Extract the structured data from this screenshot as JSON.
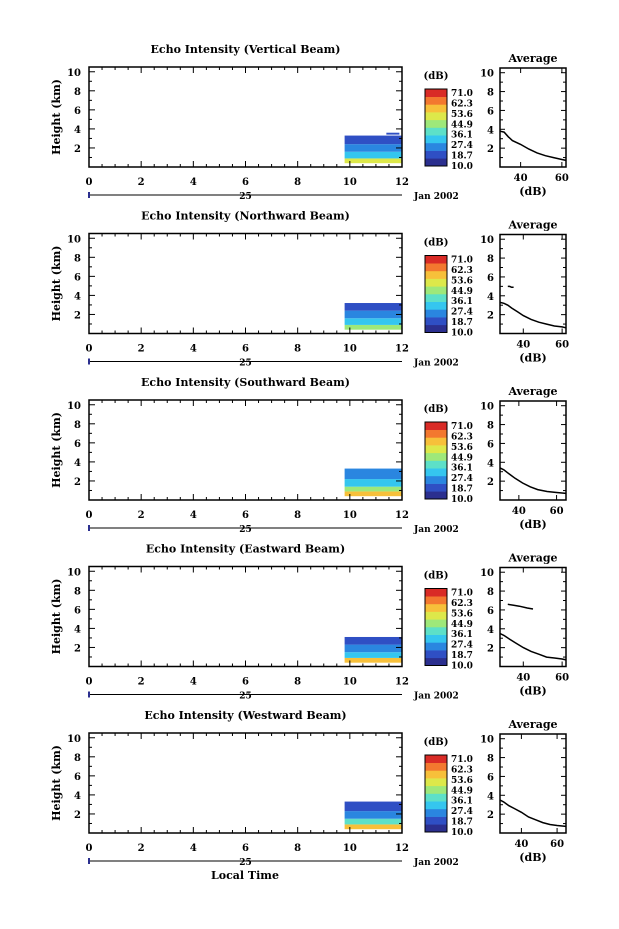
{
  "figure": {
    "xaxis_title": "Local Time",
    "date_label": "Jan 2002",
    "day_label": "25",
    "colorbar_unit": "(dB)",
    "profile_xlabel": "(dB)",
    "profile_title": "Average"
  },
  "colors": {
    "background": "#ffffff",
    "axis": "#000000",
    "colormap": [
      "#2b2f8f",
      "#2f4fc4",
      "#2a86e0",
      "#35c6ef",
      "#5de0c8",
      "#9ee87a",
      "#dde84a",
      "#f7c03a",
      "#f3782f",
      "#d92b26"
    ]
  },
  "chart_data": [
    {
      "type": "heatmap",
      "title": "Echo Intensity (Vertical Beam)",
      "xlabel": "Local Time",
      "ylabel": "Height (km)",
      "xlim": [
        0,
        12
      ],
      "ylim": [
        0,
        10.5
      ],
      "x_ticks": [
        0,
        2,
        4,
        6,
        8,
        10,
        12
      ],
      "y_ticks": [
        2,
        4,
        6,
        8,
        10
      ],
      "colorbar_ticks": [
        71.0,
        62.3,
        53.6,
        44.9,
        36.1,
        27.4,
        18.7,
        10.0
      ],
      "cells": [
        {
          "x0": 9.8,
          "x1": 12.0,
          "y0": 0.4,
          "y1": 0.9,
          "value": 50
        },
        {
          "x0": 9.8,
          "x1": 12.0,
          "y0": 0.9,
          "y1": 1.6,
          "value": 34
        },
        {
          "x0": 9.8,
          "x1": 12.0,
          "y0": 1.6,
          "y1": 2.4,
          "value": 25
        },
        {
          "x0": 9.8,
          "x1": 12.0,
          "y0": 2.4,
          "y1": 3.3,
          "value": 20
        },
        {
          "x0": 11.4,
          "x1": 11.9,
          "y0": 3.4,
          "y1": 3.6,
          "value": 18
        }
      ],
      "profile": {
        "title": "Average",
        "xlabel": "(dB)",
        "xlim": [
          30,
          62
        ],
        "ylim": [
          0,
          10.5
        ],
        "x_ticks": [
          40,
          60
        ],
        "y_ticks": [
          2,
          4,
          6,
          8,
          10
        ],
        "x": [
          30,
          32,
          34,
          36,
          40,
          44,
          48,
          52,
          56,
          60,
          62
        ],
        "y": [
          3.8,
          3.7,
          3.2,
          2.8,
          2.4,
          1.9,
          1.5,
          1.2,
          1.0,
          0.8,
          0.7
        ]
      }
    },
    {
      "type": "heatmap",
      "title": "Echo Intensity (Northward Beam)",
      "xlabel": "Local Time",
      "ylabel": "Height (km)",
      "xlim": [
        0,
        12
      ],
      "ylim": [
        0,
        10.5
      ],
      "x_ticks": [
        0,
        2,
        4,
        6,
        8,
        10,
        12
      ],
      "y_ticks": [
        2,
        4,
        6,
        8,
        10
      ],
      "colorbar_ticks": [
        71.0,
        62.3,
        53.6,
        44.9,
        36.1,
        27.4,
        18.7,
        10.0
      ],
      "cells": [
        {
          "x0": 9.8,
          "x1": 12.0,
          "y0": 0.4,
          "y1": 0.9,
          "value": 42
        },
        {
          "x0": 9.8,
          "x1": 12.0,
          "y0": 0.9,
          "y1": 1.6,
          "value": 30
        },
        {
          "x0": 9.8,
          "x1": 12.0,
          "y0": 1.6,
          "y1": 2.4,
          "value": 24
        },
        {
          "x0": 9.8,
          "x1": 12.0,
          "y0": 2.4,
          "y1": 3.2,
          "value": 20
        }
      ],
      "profile": {
        "title": "Average",
        "xlabel": "(dB)",
        "xlim": [
          28,
          62
        ],
        "ylim": [
          0,
          10.5
        ],
        "x_ticks": [
          40,
          60
        ],
        "y_ticks": [
          2,
          4,
          6,
          8,
          10
        ],
        "x": [
          28,
          30,
          32,
          34,
          37,
          40,
          44,
          48,
          52,
          56,
          60,
          62
        ],
        "y": [
          3.3,
          3.2,
          3.0,
          2.7,
          2.3,
          1.9,
          1.5,
          1.2,
          1.0,
          0.8,
          0.7,
          0.6
        ],
        "upper_segment": {
          "x": [
            32,
            33,
            34,
            35
          ],
          "y": [
            5.0,
            5.0,
            4.9,
            4.9
          ]
        }
      }
    },
    {
      "type": "heatmap",
      "title": "Echo Intensity (Southward Beam)",
      "xlabel": "Local Time",
      "ylabel": "Height (km)",
      "xlim": [
        0,
        12
      ],
      "ylim": [
        0,
        10.5
      ],
      "x_ticks": [
        0,
        2,
        4,
        6,
        8,
        10,
        12
      ],
      "y_ticks": [
        2,
        4,
        6,
        8,
        10
      ],
      "colorbar_ticks": [
        71.0,
        62.3,
        53.6,
        44.9,
        36.1,
        27.4,
        18.7,
        10.0
      ],
      "cells": [
        {
          "x0": 9.8,
          "x1": 12.0,
          "y0": 0.4,
          "y1": 0.9,
          "value": 58
        },
        {
          "x0": 9.8,
          "x1": 12.0,
          "y0": 0.9,
          "y1": 1.4,
          "value": 45
        },
        {
          "x0": 9.8,
          "x1": 12.0,
          "y0": 1.4,
          "y1": 2.2,
          "value": 32
        },
        {
          "x0": 9.8,
          "x1": 12.0,
          "y0": 2.2,
          "y1": 3.3,
          "value": 24
        }
      ],
      "profile": {
        "title": "Average",
        "xlabel": "(dB)",
        "xlim": [
          30,
          65
        ],
        "ylim": [
          0,
          10.5
        ],
        "x_ticks": [
          40,
          60
        ],
        "y_ticks": [
          2,
          4,
          6,
          8,
          10
        ],
        "x": [
          30,
          32,
          34,
          36,
          38,
          42,
          46,
          50,
          55,
          60,
          65
        ],
        "y": [
          3.4,
          3.2,
          2.9,
          2.6,
          2.3,
          1.8,
          1.4,
          1.1,
          0.9,
          0.8,
          0.7
        ]
      }
    },
    {
      "type": "heatmap",
      "title": "Echo Intensity (Eastward Beam)",
      "xlabel": "Local Time",
      "ylabel": "Height (km)",
      "xlim": [
        0,
        12
      ],
      "ylim": [
        0,
        10.5
      ],
      "x_ticks": [
        0,
        2,
        4,
        6,
        8,
        10,
        12
      ],
      "y_ticks": [
        2,
        4,
        6,
        8,
        10
      ],
      "colorbar_ticks": [
        71.0,
        62.3,
        53.6,
        44.9,
        36.1,
        27.4,
        18.7,
        10.0
      ],
      "cells": [
        {
          "x0": 9.8,
          "x1": 12.0,
          "y0": 0.4,
          "y1": 0.9,
          "value": 55
        },
        {
          "x0": 9.8,
          "x1": 12.0,
          "y0": 0.9,
          "y1": 1.5,
          "value": 33
        },
        {
          "x0": 9.8,
          "x1": 12.0,
          "y0": 1.5,
          "y1": 2.3,
          "value": 25
        },
        {
          "x0": 9.8,
          "x1": 12.0,
          "y0": 2.3,
          "y1": 3.1,
          "value": 20
        }
      ],
      "profile": {
        "title": "Average",
        "xlabel": "(dB)",
        "xlim": [
          28,
          62
        ],
        "ylim": [
          0,
          10.5
        ],
        "x_ticks": [
          40,
          60
        ],
        "y_ticks": [
          2,
          4,
          6,
          8,
          10
        ],
        "x": [
          28,
          30,
          33,
          36,
          40,
          44,
          48,
          52,
          56,
          60,
          62
        ],
        "y": [
          3.5,
          3.3,
          2.9,
          2.5,
          2.0,
          1.6,
          1.3,
          1.0,
          0.9,
          0.8,
          0.7
        ],
        "upper_segment": {
          "x": [
            32,
            35,
            38,
            42,
            45
          ],
          "y": [
            6.6,
            6.5,
            6.4,
            6.2,
            6.1
          ]
        }
      }
    },
    {
      "type": "heatmap",
      "title": "Echo Intensity (Westward Beam)",
      "xlabel": "Local Time",
      "ylabel": "Height (km)",
      "xlim": [
        0,
        12
      ],
      "ylim": [
        0,
        10.5
      ],
      "x_ticks": [
        0,
        2,
        4,
        6,
        8,
        10,
        12
      ],
      "y_ticks": [
        2,
        4,
        6,
        8,
        10
      ],
      "colorbar_ticks": [
        71.0,
        62.3,
        53.6,
        44.9,
        36.1,
        27.4,
        18.7,
        10.0
      ],
      "cells": [
        {
          "x0": 9.8,
          "x1": 12.0,
          "y0": 0.4,
          "y1": 0.9,
          "value": 56
        },
        {
          "x0": 9.8,
          "x1": 12.0,
          "y0": 0.9,
          "y1": 1.5,
          "value": 36
        },
        {
          "x0": 9.8,
          "x1": 12.0,
          "y0": 1.5,
          "y1": 2.3,
          "value": 26
        },
        {
          "x0": 9.8,
          "x1": 12.0,
          "y0": 2.3,
          "y1": 3.3,
          "value": 21
        }
      ],
      "profile": {
        "title": "Average",
        "xlabel": "(dB)",
        "xlim": [
          28,
          65
        ],
        "ylim": [
          0,
          10.5
        ],
        "x_ticks": [
          40,
          60
        ],
        "y_ticks": [
          2,
          4,
          6,
          8,
          10
        ],
        "x": [
          28,
          30,
          33,
          36,
          40,
          44,
          48,
          52,
          56,
          60,
          65
        ],
        "y": [
          3.5,
          3.3,
          2.9,
          2.6,
          2.2,
          1.7,
          1.4,
          1.1,
          0.9,
          0.8,
          0.7
        ]
      }
    }
  ]
}
